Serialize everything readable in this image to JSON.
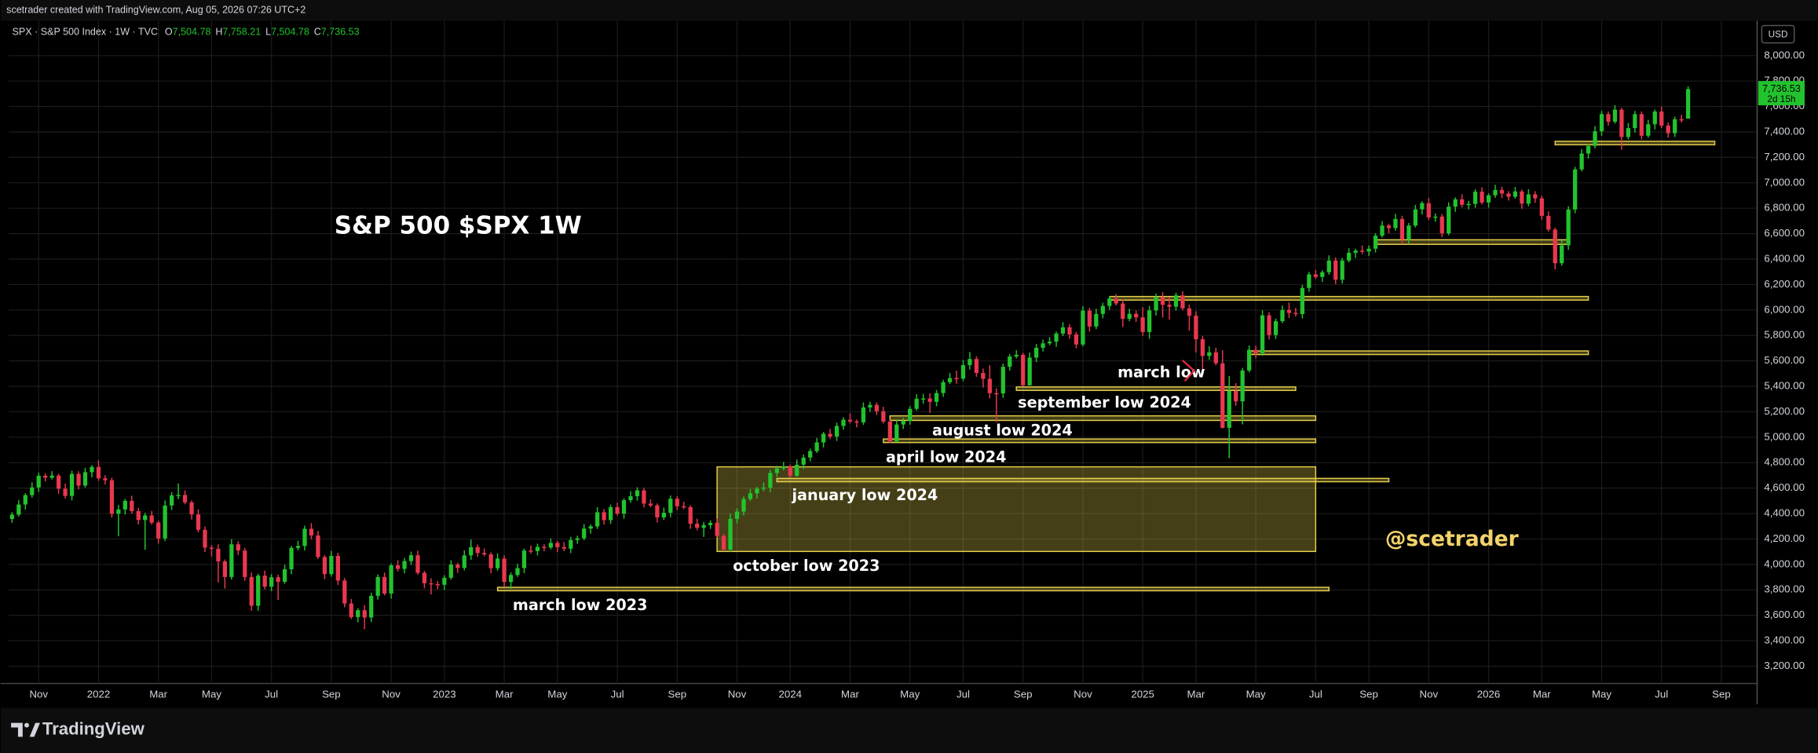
{
  "header": {
    "credit": "scetrader created with TradingView.com, Aug 05, 2026 07:26 UTC+2"
  },
  "footer": {
    "brand": "TradingView"
  },
  "chart_data": {
    "type": "candlestick",
    "title": "S&P 500 $SPX 1W",
    "symbol_line": "SPX · S&P 500 Index · 1W · TVC",
    "ohlc_keys": [
      "O",
      "H",
      "L",
      "C"
    ],
    "ohlc_labels": [
      "7,504.78",
      "7,758.21",
      "7,504.78",
      "7,736.53"
    ],
    "currency": "USD",
    "last_price_label": "7,736.53",
    "countdown": "2d 15h",
    "watermark": "@scetrader",
    "annotations": [
      "march low",
      "september low 2024",
      "august low 2024",
      "april low 2024",
      "january low 2024",
      "october low 2023",
      "march low 2023"
    ],
    "up_color": "#22c32e",
    "down_color": "#e8384f",
    "zone_color": "#e6cf4c",
    "grid": true,
    "xlim": [
      -0.5,
      262.2
    ],
    "ylim": [
      3064,
      8273
    ],
    "xticks": [
      {
        "value": 4,
        "label": "Nov"
      },
      {
        "value": 13,
        "label": "2022"
      },
      {
        "value": 22,
        "label": "Mar"
      },
      {
        "value": 30,
        "label": "May"
      },
      {
        "value": 39,
        "label": "Jul"
      },
      {
        "value": 48,
        "label": "Sep"
      },
      {
        "value": 57,
        "label": "Nov"
      },
      {
        "value": 65,
        "label": "2023"
      },
      {
        "value": 74,
        "label": "Mar"
      },
      {
        "value": 82,
        "label": "May"
      },
      {
        "value": 91,
        "label": "Jul"
      },
      {
        "value": 100,
        "label": "Sep"
      },
      {
        "value": 109,
        "label": "Nov"
      },
      {
        "value": 117,
        "label": "2024"
      },
      {
        "value": 126,
        "label": "Mar"
      },
      {
        "value": 135,
        "label": "May"
      },
      {
        "value": 143,
        "label": "Jul"
      },
      {
        "value": 152,
        "label": "Sep"
      },
      {
        "value": 161,
        "label": "Nov"
      },
      {
        "value": 170,
        "label": "2025"
      },
      {
        "value": 178,
        "label": "Mar"
      },
      {
        "value": 187,
        "label": "May"
      },
      {
        "value": 196,
        "label": "Jul"
      },
      {
        "value": 204,
        "label": "Sep"
      },
      {
        "value": 213,
        "label": "Nov"
      },
      {
        "value": 222,
        "label": "2026"
      },
      {
        "value": 230,
        "label": "Mar"
      },
      {
        "value": 239,
        "label": "May"
      },
      {
        "value": 248,
        "label": "Jul"
      },
      {
        "value": 257,
        "label": "Sep"
      }
    ],
    "yticks": [
      {
        "value": 3200,
        "label": "3,200.00"
      },
      {
        "value": 3400,
        "label": "3,400.00"
      },
      {
        "value": 3600,
        "label": "3,600.00"
      },
      {
        "value": 3800,
        "label": "3,800.00"
      },
      {
        "value": 4000,
        "label": "4,000.00"
      },
      {
        "value": 4200,
        "label": "4,200.00"
      },
      {
        "value": 4400,
        "label": "4,400.00"
      },
      {
        "value": 4600,
        "label": "4,600.00"
      },
      {
        "value": 4800,
        "label": "4,800.00"
      },
      {
        "value": 5000,
        "label": "5,000.00"
      },
      {
        "value": 5200,
        "label": "5,200.00"
      },
      {
        "value": 5400,
        "label": "5,400.00"
      },
      {
        "value": 5600,
        "label": "5,600.00"
      },
      {
        "value": 5800,
        "label": "5,800.00"
      },
      {
        "value": 6000,
        "label": "6,000.00"
      },
      {
        "value": 6200,
        "label": "6,200.00"
      },
      {
        "value": 6400,
        "label": "6,400.00"
      },
      {
        "value": 6600,
        "label": "6,600.00"
      },
      {
        "value": 6800,
        "label": "6,800.00"
      },
      {
        "value": 7000,
        "label": "7,000.00"
      },
      {
        "value": 7200,
        "label": "7,200.00"
      },
      {
        "value": 7400,
        "label": "7,400.00"
      },
      {
        "value": 7600,
        "label": "7,600.00"
      },
      {
        "value": 7800,
        "label": "7,800.00"
      },
      {
        "value": 8000,
        "label": "8,000.00"
      }
    ],
    "zones": [
      {
        "start": 106,
        "end": 196,
        "low": 4102,
        "high": 4767
      },
      {
        "start": 115,
        "end": 207,
        "low": 4650,
        "high": 4676
      },
      {
        "start": 131,
        "end": 196,
        "low": 4958,
        "high": 4986
      },
      {
        "start": 132,
        "end": 196,
        "low": 5132,
        "high": 5168
      },
      {
        "start": 151,
        "end": 193,
        "low": 5368,
        "high": 5395
      },
      {
        "start": 186,
        "end": 237,
        "low": 5650,
        "high": 5678
      },
      {
        "start": 165,
        "end": 237,
        "low": 6078,
        "high": 6106
      },
      {
        "start": 205,
        "end": 234,
        "low": 6516,
        "high": 6552
      },
      {
        "start": 232,
        "end": 256,
        "low": 7299,
        "high": 7326
      },
      {
        "start": 73,
        "end": 198,
        "low": 3793,
        "high": 3820
      }
    ],
    "open": [
      4357,
      4391,
      4471,
      4545,
      4605,
      4697,
      4682,
      4698,
      4595,
      4538,
      4712,
      4620,
      4725,
      4766,
      4677,
      4662,
      4398,
      4432,
      4500,
      4419,
      4349,
      4385,
      4329,
      4204,
      4463,
      4543,
      4546,
      4488,
      4393,
      4272,
      4132,
      4123,
      4024,
      3901,
      4158,
      4109,
      3901,
      3675,
      3912,
      3825,
      3899,
      3863,
      3962,
      4130,
      4145,
      4280,
      4228,
      4058,
      3924,
      4067,
      3873,
      3693,
      3586,
      3640,
      3583,
      3753,
      3901,
      3771,
      3993,
      3965,
      4026,
      4072,
      3934,
      3852,
      3845,
      3840,
      3895,
      3999,
      3973,
      4071,
      4136,
      4090,
      4079,
      3970,
      4046,
      3862,
      3917,
      3971,
      4109,
      4105,
      4138,
      4133,
      4169,
      4136,
      4124,
      4192,
      4205,
      4282,
      4299,
      4410,
      4348,
      4450,
      4399,
      4505,
      4536,
      4582,
      4478,
      4464,
      4370,
      4406,
      4516,
      4457,
      4450,
      4320,
      4288,
      4309,
      4327,
      4224,
      4117,
      4358,
      4415,
      4514,
      4559,
      4595,
      4604,
      4719,
      4755,
      4770,
      4697,
      4784,
      4840,
      4891,
      4959,
      5027,
      5005,
      5089,
      5137,
      5124,
      5117,
      5234,
      5254,
      5204,
      5123,
      4967,
      5100,
      5128,
      5223,
      5303,
      5305,
      5278,
      5347,
      5432,
      5465,
      5460,
      5567,
      5615,
      5505,
      5459,
      5346,
      5344,
      5554,
      5634,
      5648,
      5408,
      5626,
      5703,
      5738,
      5751,
      5815,
      5864,
      5808,
      5729,
      5995,
      5870,
      5969,
      6032,
      6090,
      6051,
      5931,
      5970,
      5942,
      5827,
      5997,
      6101,
      6041,
      6026,
      6115,
      6013,
      5955,
      5770,
      5639,
      5667,
      5581,
      5074,
      5363,
      5282,
      5525,
      5687,
      5660,
      5958,
      5803,
      5912,
      6000,
      5977,
      5968,
      6173,
      6280,
      6260,
      6297,
      6389,
      6238,
      6389,
      6450,
      6467,
      6460,
      6482,
      6584,
      6664,
      6644,
      6716,
      6553,
      6664,
      6791,
      6840,
      6728,
      6734,
      6603,
      6812,
      6870,
      6827,
      6834,
      6930,
      6845,
      6902,
      6944,
      6915,
      6890,
      6932,
      6836,
      6909,
      6878,
      6740,
      6632,
      6368,
      6508,
      6790,
      7105,
      7230,
      7290,
      7405,
      7540,
      7480,
      7575,
      7360,
      7430,
      7540,
      7370,
      7460,
      7560,
      7450,
      7390,
      7500,
      7504.78
    ],
    "high": [
      4411,
      4506,
      4560,
      4645,
      4722,
      4717,
      4733,
      4713,
      4635,
      4737,
      4732,
      4760,
      4781,
      4818,
      4702,
      4682,
      4467,
      4515,
      4540,
      4444,
      4405,
      4420,
      4344,
      4503,
      4568,
      4637,
      4581,
      4503,
      4433,
      4297,
      4152,
      4158,
      4039,
      4198,
      4183,
      4129,
      3936,
      3927,
      3952,
      3924,
      3919,
      3997,
      4145,
      4185,
      4305,
      4325,
      4263,
      4073,
      4107,
      4092,
      3893,
      3728,
      3655,
      3680,
      3778,
      3921,
      3936,
      4008,
      4033,
      4051,
      4100,
      4107,
      3949,
      3892,
      3870,
      3915,
      4034,
      4014,
      4111,
      4195,
      4156,
      4125,
      4094,
      4086,
      4071,
      3937,
      4006,
      4124,
      4149,
      4163,
      4158,
      4204,
      4184,
      4176,
      4217,
      4225,
      4317,
      4314,
      4450,
      4435,
      4470,
      4485,
      4520,
      4576,
      4607,
      4602,
      4513,
      4479,
      4446,
      4541,
      4536,
      4492,
      4465,
      4360,
      4334,
      4347,
      4362,
      4239,
      4398,
      4440,
      4534,
      4594,
      4610,
      4644,
      4744,
      4775,
      4805,
      4785,
      4824,
      4865,
      4911,
      4994,
      5042,
      5067,
      5114,
      5157,
      5189,
      5139,
      5274,
      5279,
      5274,
      5239,
      5138,
      5140,
      5153,
      5243,
      5338,
      5341,
      5345,
      5372,
      5452,
      5505,
      5523,
      5607,
      5670,
      5636,
      5540,
      5566,
      5384,
      5579,
      5654,
      5683,
      5663,
      5666,
      5733,
      5768,
      5786,
      5830,
      5904,
      5889,
      5828,
      6030,
      6017,
      6009,
      6057,
      6110,
      6125,
      6085,
      6010,
      5995,
      6022,
      6032,
      6128,
      6141,
      6101,
      6135,
      6147,
      6043,
      5990,
      5795,
      5715,
      5703,
      5684,
      5481,
      5425,
      5545,
      5722,
      5720,
      5998,
      5983,
      5932,
      6035,
      6059,
      6017,
      6198,
      6300,
      6315,
      6312,
      6429,
      6414,
      6409,
      6485,
      6482,
      6507,
      6507,
      6604,
      6699,
      6679,
      6756,
      6741,
      6684,
      6826,
      6855,
      6880,
      6759,
      6754,
      6847,
      6885,
      6910,
      6859,
      6950,
      6965,
      6917,
      6984,
      6969,
      6935,
      6967,
      6947,
      6949,
      6934,
      6898,
      6775,
      6647,
      6548,
      6815,
      7125,
      7265,
      7305,
      7445,
      7565,
      7560,
      7610,
      7590,
      7470,
      7565,
      7560,
      7495,
      7575,
      7600,
      7475,
      7520,
      7535,
      7758.21
    ],
    "low": [
      4327,
      4376,
      4431,
      4525,
      4570,
      4652,
      4667,
      4555,
      4518,
      4503,
      4590,
      4605,
      4685,
      4657,
      4627,
      4368,
      4222,
      4392,
      4399,
      4314,
      4115,
      4314,
      4164,
      4184,
      4428,
      4513,
      4473,
      4353,
      4252,
      4097,
      4062,
      3859,
      3810,
      3881,
      4074,
      3871,
      3636,
      3635,
      3805,
      3790,
      3721,
      3848,
      3922,
      4110,
      4110,
      4198,
      4043,
      3884,
      3904,
      3838,
      3663,
      3571,
      3546,
      3491,
      3548,
      3723,
      3756,
      3731,
      3945,
      3930,
      3996,
      3919,
      3812,
      3764,
      3805,
      3800,
      3880,
      3933,
      3953,
      4036,
      4060,
      4064,
      3930,
      3950,
      3827,
      3808,
      3902,
      3931,
      4085,
      4070,
      4103,
      4118,
      4096,
      4104,
      4089,
      4162,
      4190,
      4242,
      4279,
      4313,
      4318,
      4384,
      4359,
      4485,
      4501,
      4448,
      4449,
      4330,
      4350,
      4371,
      4427,
      4435,
      4280,
      4268,
      4216,
      4279,
      4209,
      4103,
      4097,
      4323,
      4385,
      4499,
      4519,
      4575,
      4569,
      4689,
      4740,
      4682,
      4690,
      4749,
      4810,
      4876,
      4919,
      4985,
      4970,
      5059,
      5109,
      5077,
      5097,
      5199,
      5174,
      5108,
      4953,
      4960,
      5065,
      5098,
      5208,
      5263,
      5191,
      5243,
      5317,
      5417,
      5420,
      5440,
      5532,
      5475,
      5390,
      5306,
      5119,
      5309,
      5524,
      5619,
      5402,
      5406,
      5591,
      5673,
      5723,
      5711,
      5795,
      5773,
      5699,
      5714,
      5830,
      5850,
      5934,
      6002,
      6036,
      5867,
      5911,
      5907,
      5797,
      5773,
      5957,
      5940,
      5924,
      5996,
      5998,
      5838,
      5666,
      5505,
      5609,
      5566,
      5069,
      4835,
      5247,
      5101,
      5510,
      5620,
      5640,
      5768,
      5773,
      5897,
      5937,
      5948,
      5933,
      6143,
      6245,
      6220,
      6277,
      6203,
      6208,
      6374,
      6410,
      6440,
      6425,
      6452,
      6569,
      6604,
      6624,
      6518,
      6523,
      6649,
      6751,
      6708,
      6693,
      6573,
      6588,
      6772,
      6807,
      6792,
      6804,
      6830,
      6805,
      6882,
      6880,
      6860,
      6875,
      6796,
      6816,
      6843,
      6710,
      6617,
      6320,
      6348,
      6473,
      6760,
      7090,
      7190,
      7270,
      7370,
      7450,
      7465,
      7260,
      7340,
      7395,
      7340,
      7355,
      7420,
      7430,
      7355,
      7360,
      7475,
      7504.78
    ],
    "close": [
      4391,
      4471,
      4545,
      4605,
      4697,
      4682,
      4698,
      4595,
      4538,
      4712,
      4620,
      4725,
      4766,
      4677,
      4662,
      4398,
      4432,
      4500,
      4419,
      4349,
      4385,
      4329,
      4204,
      4463,
      4543,
      4546,
      4488,
      4393,
      4272,
      4132,
      4123,
      4024,
      3901,
      4158,
      4109,
      3901,
      3675,
      3912,
      3825,
      3899,
      3863,
      3962,
      4130,
      4145,
      4280,
      4228,
      4058,
      3924,
      4067,
      3873,
      3693,
      3586,
      3640,
      3583,
      3753,
      3901,
      3771,
      3993,
      3965,
      4026,
      4072,
      3934,
      3852,
      3845,
      3840,
      3895,
      3999,
      3973,
      4071,
      4136,
      4090,
      4079,
      3970,
      4046,
      3862,
      3917,
      3971,
      4109,
      4105,
      4138,
      4133,
      4169,
      4136,
      4124,
      4192,
      4205,
      4282,
      4299,
      4410,
      4348,
      4450,
      4399,
      4505,
      4536,
      4582,
      4478,
      4464,
      4370,
      4406,
      4516,
      4457,
      4450,
      4320,
      4288,
      4309,
      4327,
      4224,
      4117,
      4358,
      4415,
      4514,
      4559,
      4595,
      4604,
      4719,
      4755,
      4770,
      4697,
      4784,
      4840,
      4891,
      4959,
      5027,
      5005,
      5089,
      5137,
      5124,
      5117,
      5234,
      5254,
      5204,
      5123,
      4967,
      5100,
      5128,
      5223,
      5303,
      5305,
      5278,
      5347,
      5432,
      5465,
      5460,
      5567,
      5615,
      5505,
      5459,
      5346,
      5344,
      5554,
      5634,
      5648,
      5408,
      5626,
      5703,
      5738,
      5751,
      5815,
      5864,
      5808,
      5729,
      5995,
      5870,
      5969,
      6032,
      6090,
      6051,
      5931,
      5970,
      5942,
      5827,
      5997,
      6101,
      6041,
      6026,
      6115,
      6013,
      5955,
      5770,
      5639,
      5667,
      5581,
      5074,
      5363,
      5282,
      5525,
      5687,
      5660,
      5958,
      5803,
      5912,
      6000,
      5977,
      5968,
      6173,
      6280,
      6260,
      6297,
      6389,
      6238,
      6389,
      6450,
      6467,
      6460,
      6482,
      6584,
      6664,
      6644,
      6716,
      6553,
      6664,
      6791,
      6840,
      6728,
      6734,
      6603,
      6812,
      6870,
      6827,
      6834,
      6930,
      6845,
      6902,
      6944,
      6915,
      6890,
      6932,
      6836,
      6909,
      6878,
      6740,
      6632,
      6368,
      6508,
      6790,
      7105,
      7230,
      7290,
      7405,
      7540,
      7480,
      7575,
      7360,
      7430,
      7540,
      7370,
      7460,
      7560,
      7450,
      7390,
      7500,
      7490,
      7736.53
    ]
  }
}
